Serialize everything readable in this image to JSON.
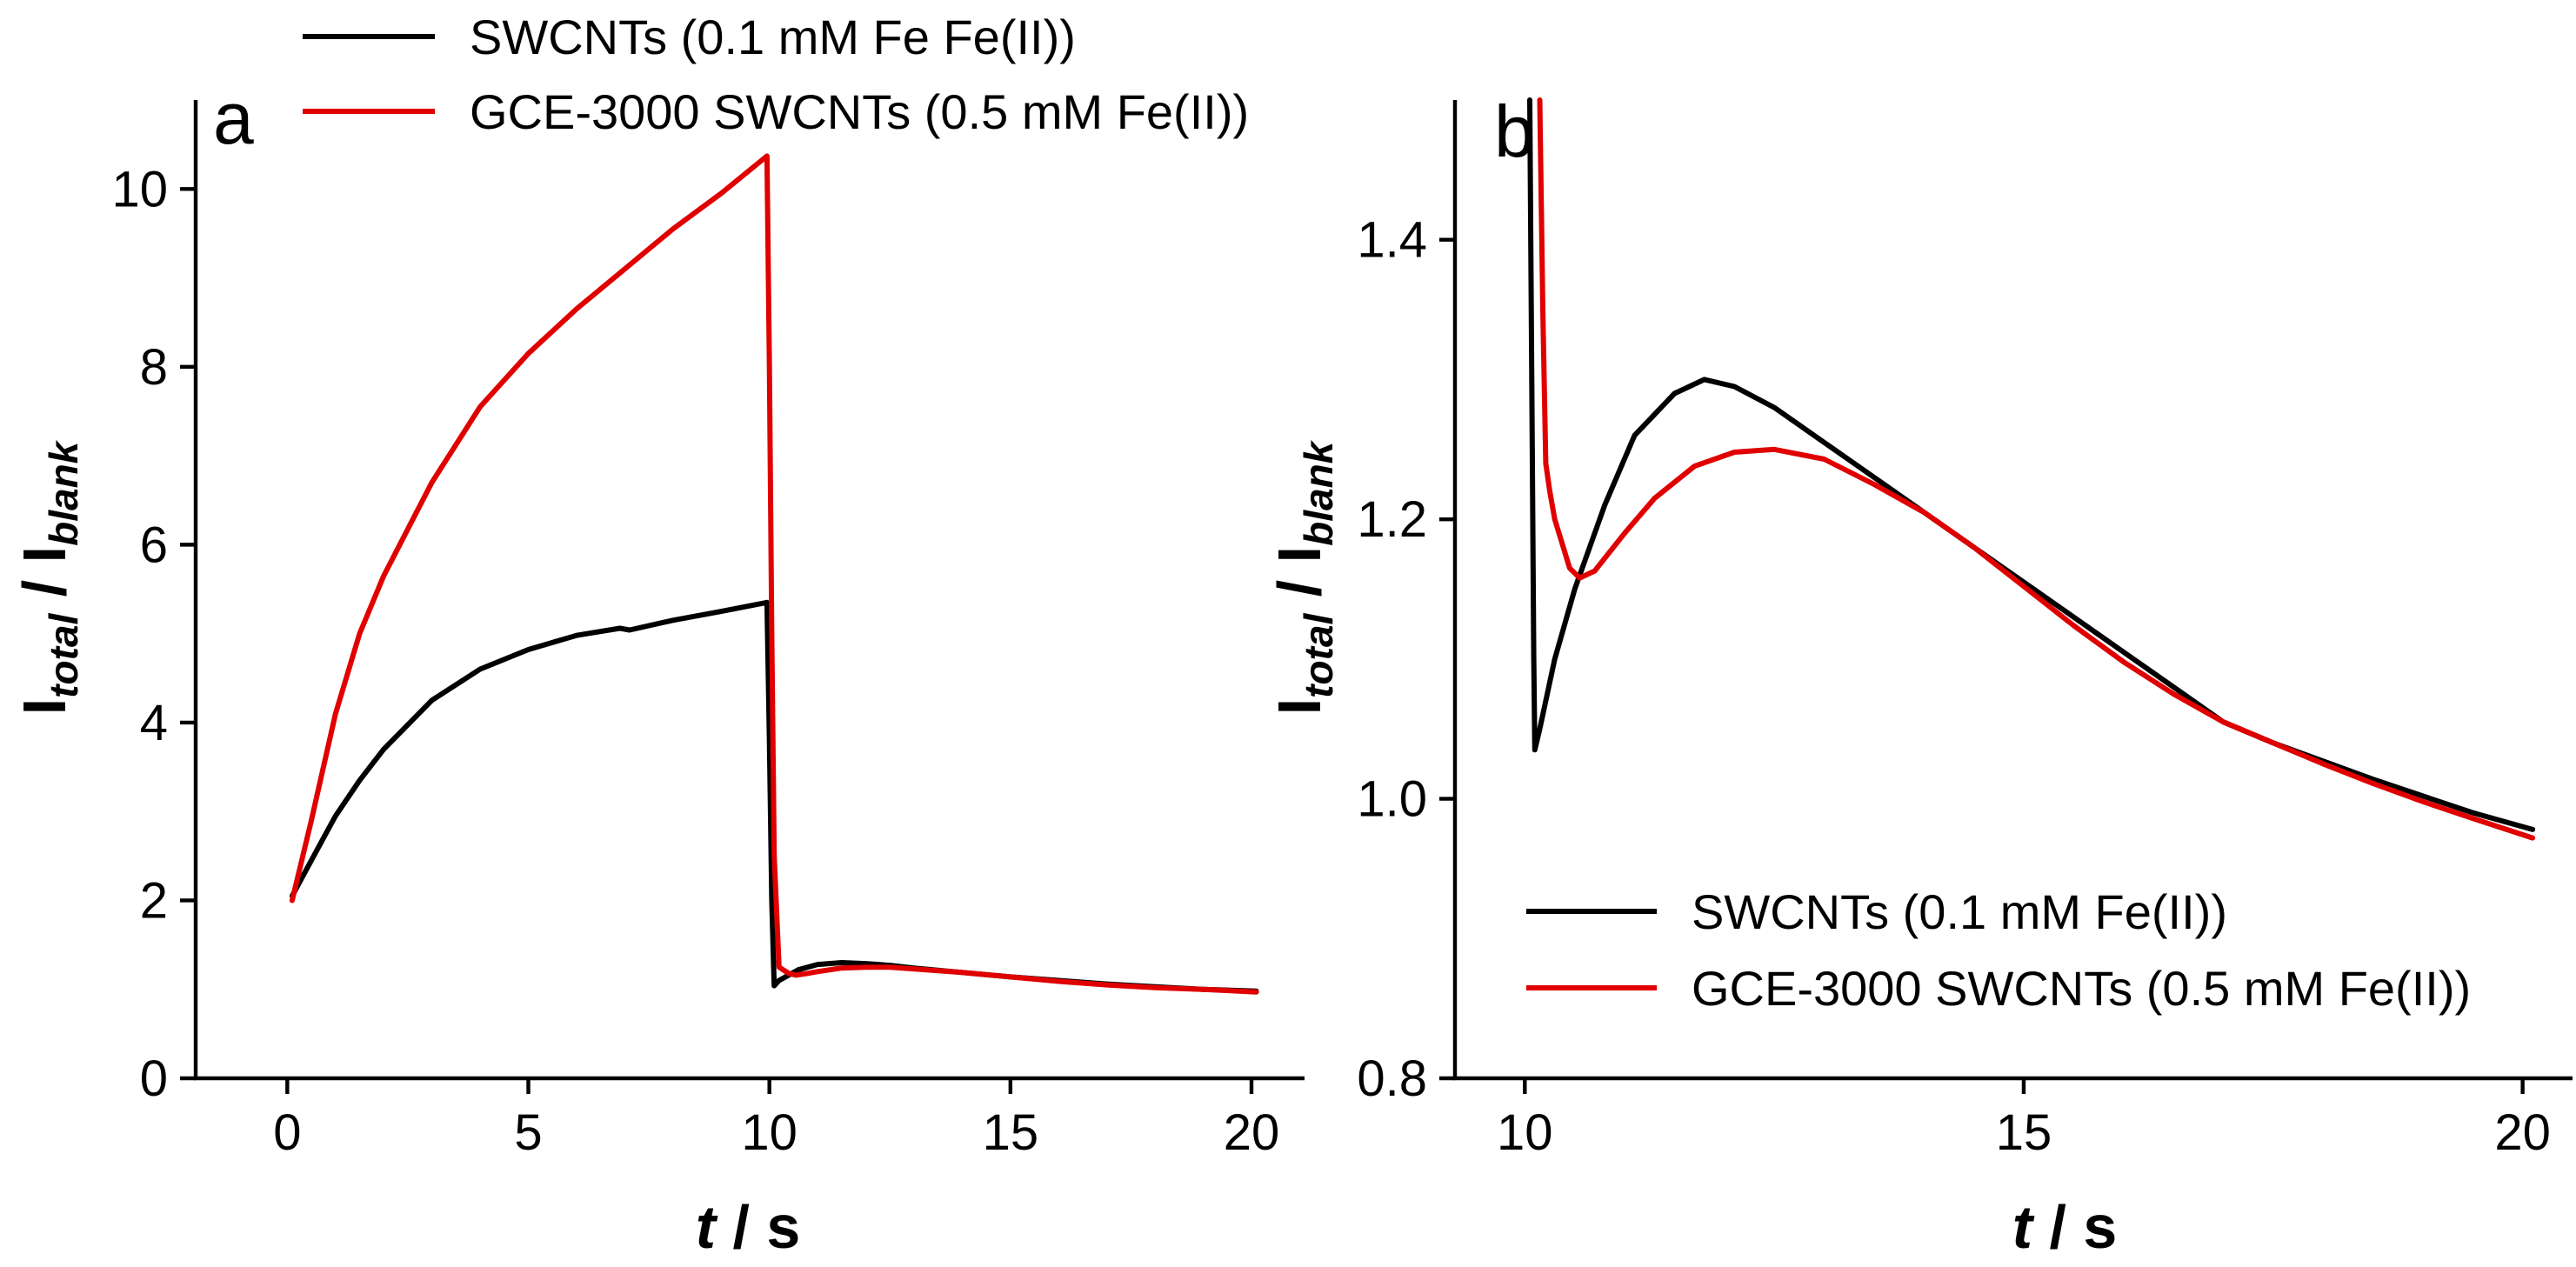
{
  "chart_data": [
    {
      "type": "line",
      "panel_label": "a",
      "xlabel": "t / s",
      "xlabel_italic": "t",
      "xlabel_rest": " / s",
      "ylabel": {
        "main1": "I",
        "sub1": "total",
        "sep": " / ",
        "main2": "I",
        "sub2": "blank"
      },
      "xlim": [
        -1.9,
        21.1
      ],
      "ylim": [
        0,
        11
      ],
      "xticks": [
        0,
        5,
        10,
        15,
        20
      ],
      "xtick_labels": [
        "0",
        "5",
        "10",
        "15",
        "20"
      ],
      "yticks": [
        0,
        2,
        4,
        6,
        8,
        10
      ],
      "ytick_labels": [
        "0",
        "2",
        "4",
        "6",
        "8",
        "10"
      ],
      "legend_position": "top-center",
      "series": [
        {
          "name": "SWCNTs (0.1 mM Fe Fe(II))",
          "color": "#000000",
          "x": [
            0.1,
            0.5,
            1,
            1.5,
            2,
            3,
            4,
            5,
            6,
            6.9,
            7.1,
            8,
            9,
            9.95,
            10.0,
            10.05,
            10.1,
            10.2,
            10.4,
            10.6,
            11,
            11.5,
            12,
            12.5,
            13,
            14,
            15,
            16,
            17,
            18,
            19,
            20.1
          ],
          "y": [
            2.05,
            2.45,
            2.95,
            3.35,
            3.7,
            4.25,
            4.6,
            4.82,
            4.98,
            5.06,
            5.04,
            5.15,
            5.25,
            5.35,
            3.8,
            2.0,
            1.04,
            1.1,
            1.16,
            1.22,
            1.28,
            1.3,
            1.29,
            1.27,
            1.24,
            1.19,
            1.14,
            1.1,
            1.06,
            1.03,
            1.0,
            0.98
          ]
        },
        {
          "name": "GCE-3000 SWCNTs (0.5 mM Fe(II))",
          "color": "#e00000",
          "x": [
            0.1,
            0.5,
            1,
            1.5,
            2,
            3,
            4,
            5,
            6,
            7,
            8,
            9,
            9.95,
            10.0,
            10.05,
            10.1,
            10.2,
            10.4,
            10.55,
            10.8,
            11,
            11.5,
            12,
            12.5,
            13,
            14,
            15,
            16,
            17,
            18,
            19,
            20.1
          ],
          "y": [
            2.0,
            2.9,
            4.1,
            5.0,
            5.65,
            6.7,
            7.55,
            8.15,
            8.65,
            9.1,
            9.55,
            9.95,
            10.37,
            8.0,
            5.0,
            2.5,
            1.25,
            1.18,
            1.16,
            1.18,
            1.2,
            1.24,
            1.25,
            1.25,
            1.23,
            1.19,
            1.14,
            1.09,
            1.05,
            1.02,
            1.0,
            0.97
          ]
        }
      ]
    },
    {
      "type": "line",
      "panel_label": "b",
      "xlabel": "t / s",
      "xlabel_italic": "t",
      "xlabel_rest": " / s",
      "ylabel": {
        "main1": "I",
        "sub1": "total",
        "sep": " / ",
        "main2": "I",
        "sub2": "blank"
      },
      "xlim": [
        9.3,
        20.5
      ],
      "ylim": [
        0.8,
        1.5
      ],
      "xticks": [
        10,
        15,
        20
      ],
      "xtick_labels": [
        "10",
        "15",
        "20"
      ],
      "yticks": [
        0.8,
        1.0,
        1.2,
        1.4
      ],
      "ytick_labels": [
        "0.8",
        "1.0",
        "1.2",
        "1.4"
      ],
      "legend_position": "bottom-center",
      "series": [
        {
          "name": "SWCNTs (0.1 mM Fe(II))",
          "color": "#000000",
          "x": [
            10.05,
            10.07,
            10.09,
            10.1,
            10.15,
            10.3,
            10.5,
            10.8,
            11.1,
            11.5,
            11.8,
            12.1,
            12.5,
            13,
            13.5,
            14,
            14.5,
            15,
            15.5,
            16,
            16.5,
            17,
            17.5,
            18,
            18.5,
            19,
            19.5,
            20.1
          ],
          "y": [
            1.5,
            1.3,
            1.1,
            1.035,
            1.05,
            1.1,
            1.15,
            1.21,
            1.26,
            1.29,
            1.3,
            1.295,
            1.28,
            1.255,
            1.23,
            1.205,
            1.18,
            1.155,
            1.13,
            1.105,
            1.08,
            1.055,
            1.04,
            1.027,
            1.014,
            1.002,
            0.99,
            0.978
          ]
        },
        {
          "name": "GCE-3000 SWCNTs (0.5 mM Fe(II))",
          "color": "#e00000",
          "x": [
            10.15,
            10.18,
            10.21,
            10.25,
            10.3,
            10.45,
            10.55,
            10.7,
            11,
            11.3,
            11.7,
            12.1,
            12.5,
            13,
            13.5,
            14,
            14.5,
            15,
            15.5,
            16,
            16.5,
            17,
            17.5,
            18,
            18.5,
            19,
            19.5,
            20.1
          ],
          "y": [
            1.5,
            1.35,
            1.24,
            1.22,
            1.2,
            1.165,
            1.158,
            1.163,
            1.19,
            1.215,
            1.238,
            1.248,
            1.25,
            1.243,
            1.225,
            1.205,
            1.18,
            1.152,
            1.124,
            1.098,
            1.075,
            1.055,
            1.04,
            1.025,
            1.011,
            0.998,
            0.986,
            0.972
          ]
        }
      ]
    }
  ]
}
